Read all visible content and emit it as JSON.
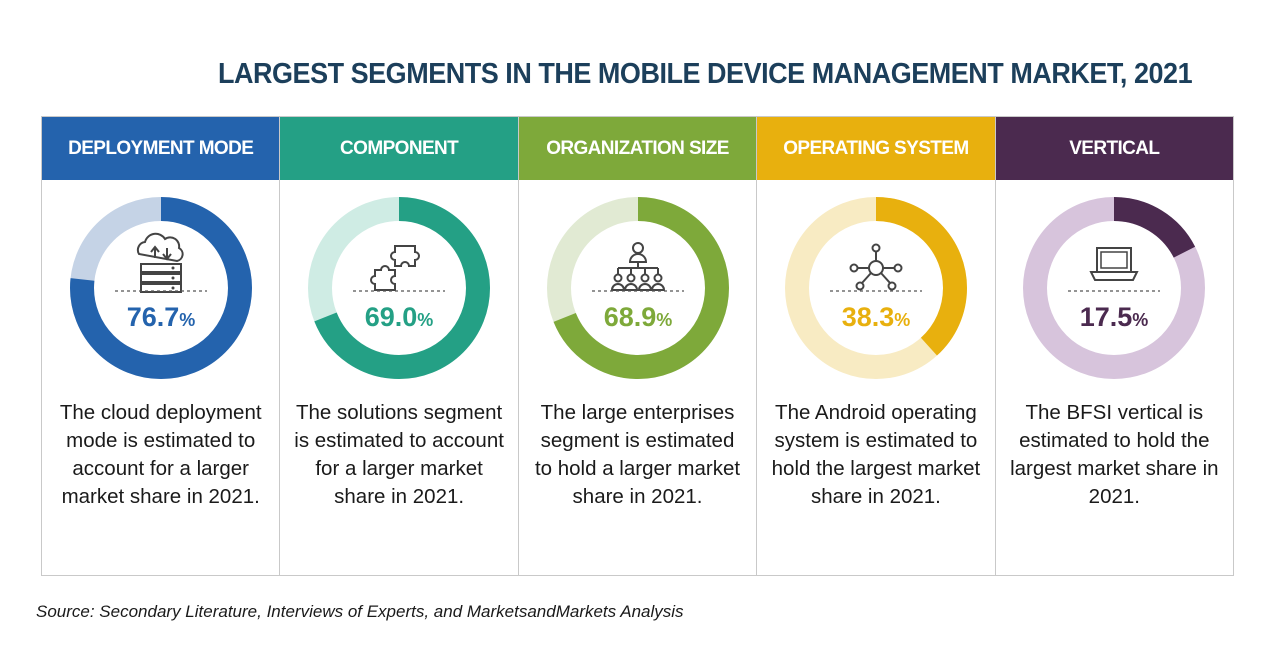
{
  "title": "LARGEST SEGMENTS IN THE MOBILE DEVICE MANAGEMENT MARKET, 2021",
  "source": "Source: Secondary Literature, Interviews of Experts, and MarketsandMarkets Analysis",
  "chart_data": [
    {
      "type": "pie",
      "title": "DEPLOYMENT MODE",
      "value": 76.7,
      "value_label": "76.7",
      "unit": "%",
      "description": "The cloud deployment mode is estimated to account for a larger market share in 2021.",
      "color": "#2463ad",
      "light_color": "#c5d3e6",
      "icon": "cloud-server-icon"
    },
    {
      "type": "pie",
      "title": "COMPONENT",
      "value": 69.0,
      "value_label": "69.0",
      "unit": "%",
      "description": "The solutions segment is estimated to account for a larger market share in 2021.",
      "color": "#24a085",
      "light_color": "#cfece4",
      "icon": "puzzle-icon"
    },
    {
      "type": "pie",
      "title": "ORGANIZATION SIZE",
      "value": 68.9,
      "value_label": "68.9",
      "unit": "%",
      "description": "The large enterprises segment is estimated to hold a larger market share in 2021.",
      "color": "#7ea93a",
      "light_color": "#e1ead3",
      "icon": "organization-icon"
    },
    {
      "type": "pie",
      "title": "OPERATING SYSTEM",
      "value": 38.3,
      "value_label": "38.3",
      "unit": "%",
      "description": "The Android operating system is estimated to hold the largest market share in 2021.",
      "color": "#e8b00e",
      "light_color": "#f8ebc3",
      "icon": "network-hub-icon"
    },
    {
      "type": "pie",
      "title": "VERTICAL",
      "value": 17.5,
      "value_label": "17.5",
      "unit": "%",
      "description": "The BFSI vertical is estimated to hold the largest market share in 2021.",
      "color": "#4b2a4f",
      "light_color": "#d7c4dc",
      "icon": "laptop-icon"
    }
  ]
}
